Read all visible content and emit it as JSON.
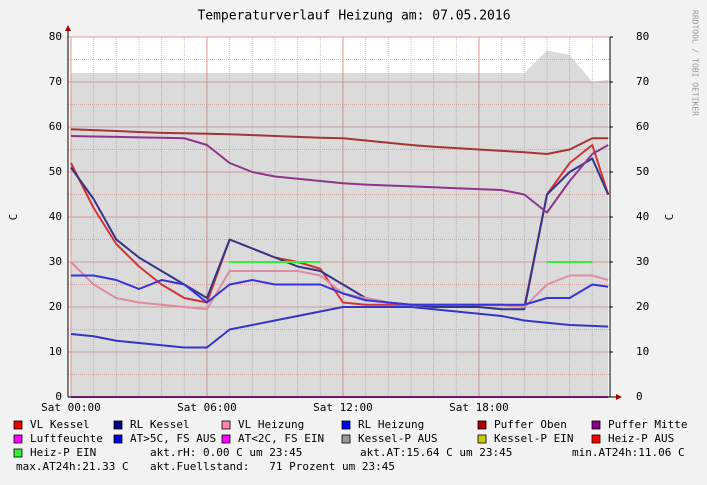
{
  "chart_data": {
    "type": "line",
    "title": "Temperaturverlauf Heizung am: 07.05.2016",
    "watermark": "RRDTOOL / TOBI OETIKER",
    "ylabel": "C",
    "y2label": "C",
    "x": [
      0,
      1,
      2,
      3,
      4,
      5,
      6,
      7,
      8,
      9,
      10,
      11,
      12,
      13,
      14,
      15,
      16,
      17,
      18,
      19,
      20,
      21,
      22,
      23,
      23.7
    ],
    "xlim": [
      -0.13,
      23.78
    ],
    "xticks": [
      {
        "value": 0,
        "label": "Sat 00:00"
      },
      {
        "value": 6,
        "label": "Sat 06:00"
      },
      {
        "value": 12,
        "label": "Sat 12:00"
      },
      {
        "value": 18,
        "label": "Sat 18:00"
      }
    ],
    "ylim": [
      0,
      80
    ],
    "yticks": [
      0,
      10,
      20,
      30,
      40,
      50,
      60,
      70,
      80
    ],
    "y2lim": [
      0,
      80
    ],
    "y2ticks": [
      0,
      10,
      20,
      30,
      40,
      50,
      60,
      70,
      80
    ],
    "grid": true,
    "series": [
      {
        "name": "VL Kessel",
        "color": "#ee0000",
        "values": [
          52,
          42,
          34,
          29,
          25,
          22,
          21,
          35,
          33,
          31,
          30,
          28.5,
          21,
          20.5,
          20.5,
          20.5,
          20.5,
          20.5,
          20.5,
          20.5,
          20,
          45,
          52,
          56,
          45
        ]
      },
      {
        "name": "RL Kessel",
        "color": "#000080",
        "values": [
          51,
          44,
          35,
          31,
          28,
          25,
          22,
          35,
          33,
          31,
          29,
          28,
          25,
          22,
          21,
          20.5,
          20,
          20,
          20,
          19.5,
          19.5,
          45,
          50,
          53,
          45
        ]
      },
      {
        "name": "VL Heizung",
        "color": "#ff88a8",
        "values": [
          30,
          25,
          22,
          21,
          20.5,
          20,
          19.5,
          28,
          28,
          28,
          28,
          27,
          23,
          22,
          21,
          20.5,
          20.5,
          20.5,
          20.5,
          20.5,
          20,
          25,
          27,
          27,
          26
        ]
      },
      {
        "name": "RL Heizung",
        "color": "#0000ff",
        "values": [
          27,
          27,
          26,
          24,
          26,
          25,
          21,
          25,
          26,
          25,
          25,
          25,
          23,
          21.5,
          21,
          20.5,
          20.5,
          20.5,
          20.5,
          20.5,
          20.5,
          22,
          22,
          25,
          24.5
        ]
      },
      {
        "name": "Puffer Oben",
        "color": "#aa0000",
        "values": [
          59.5,
          59.3,
          59.1,
          58.9,
          58.7,
          58.6,
          58.5,
          58.4,
          58.2,
          58,
          57.8,
          57.6,
          57.5,
          57,
          56.5,
          56,
          55.6,
          55.3,
          55,
          54.7,
          54.4,
          54,
          55,
          57.5,
          57.5
        ]
      },
      {
        "name": "Puffer Mitte",
        "color": "#880088",
        "values": [
          58,
          57.9,
          57.8,
          57.7,
          57.6,
          57.5,
          56,
          52,
          50,
          49,
          48.5,
          48,
          47.5,
          47.2,
          47,
          46.8,
          46.6,
          46.4,
          46.2,
          46,
          45,
          41,
          48,
          54,
          56
        ]
      },
      {
        "name": "Luftfeuchte",
        "color": "#ff00ff",
        "values": [
          0,
          0,
          0,
          0,
          0,
          0,
          0,
          0,
          0,
          0,
          0,
          0,
          0,
          0,
          0,
          0,
          0,
          0,
          0,
          0,
          0,
          0,
          0,
          0,
          0
        ]
      },
      {
        "name": "AT>5C, FS AUS",
        "color": "#0000dd",
        "values": [
          14,
          13.5,
          12.5,
          12,
          11.5,
          11,
          11,
          15,
          16,
          17,
          18,
          19,
          20,
          20,
          20,
          20,
          19.5,
          19,
          18.5,
          18,
          17,
          16.5,
          16,
          15.8,
          15.64
        ]
      },
      {
        "name": "AT<2C, FS EIN",
        "color": "#ff00ff",
        "values": [
          null,
          null,
          null,
          null,
          null,
          null,
          null,
          null,
          null,
          null,
          null,
          null,
          null,
          null,
          null,
          null,
          null,
          null,
          null,
          null,
          null,
          null,
          null,
          null,
          null
        ]
      },
      {
        "name": "Kessel-P AUS",
        "color": "#999999",
        "area": true,
        "values": [
          72,
          72,
          72,
          72,
          72,
          72,
          72,
          72,
          72,
          72,
          72,
          72,
          72,
          72,
          72,
          72,
          72,
          72,
          72,
          72,
          72,
          77,
          76,
          70,
          70.5
        ]
      },
      {
        "name": "Kessel-P EIN",
        "color": "#cccc00",
        "values": [
          null,
          null,
          null,
          null,
          null,
          null,
          null,
          null,
          null,
          null,
          null,
          null,
          null,
          null,
          null,
          null,
          null,
          null,
          null,
          null,
          null,
          30,
          30,
          null,
          null
        ]
      },
      {
        "name": "Heiz-P AUS",
        "color": "#ff0000",
        "values": [
          null,
          null,
          null,
          null,
          null,
          null,
          null,
          null,
          null,
          null,
          null,
          null,
          null,
          null,
          null,
          null,
          null,
          null,
          null,
          null,
          null,
          null,
          null,
          null,
          null
        ]
      },
      {
        "name": "Heiz-P EIN",
        "color": "#33ee33",
        "values": [
          null,
          null,
          null,
          null,
          null,
          null,
          null,
          30,
          30,
          30,
          30,
          30,
          null,
          null,
          null,
          null,
          null,
          null,
          null,
          null,
          null,
          30,
          30,
          30,
          null
        ]
      }
    ],
    "footnotes": [
      "akt.rH: 0.00 C um 23:45",
      "akt.AT:15.64 C um 23:45",
      "min.AT24h:11.06 C",
      "max.AT24h:21.33 C",
      "akt.Fuellstand:   71 Prozent um 23:45"
    ]
  }
}
